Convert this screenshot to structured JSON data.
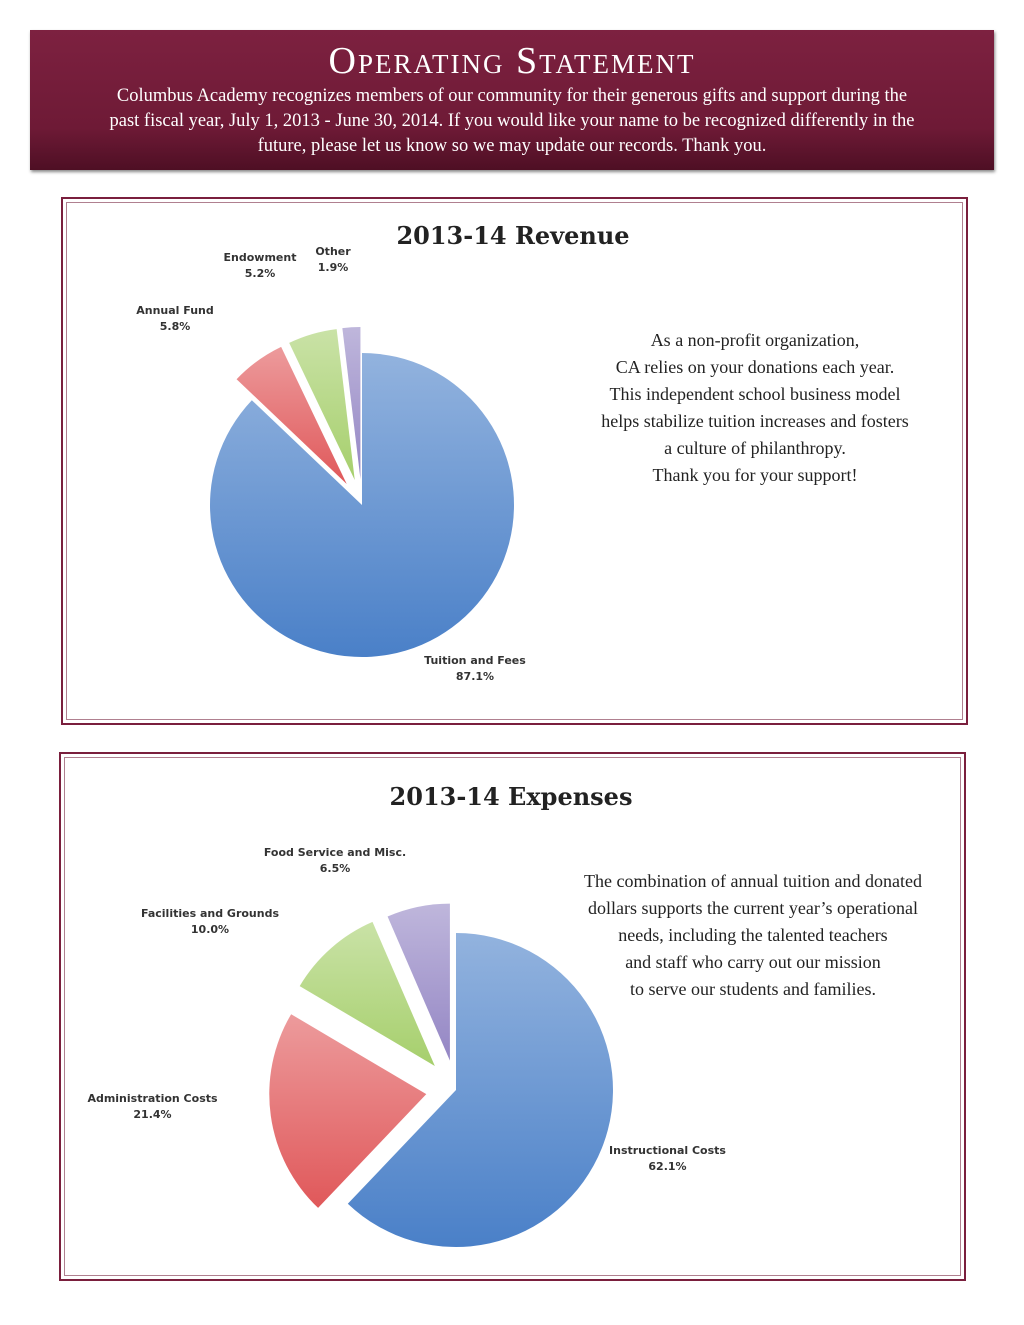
{
  "header": {
    "title": "Operating Statement",
    "intro": "Columbus Academy recognizes members of our community for their generous gifts and support during the past fiscal year, July 1, 2013 - June 30, 2014.  If you would like your name to be recognized differently in the future, please let us know so we may update our records.  Thank you."
  },
  "revenue_text": [
    "As a non-profit organization,",
    "CA relies on your donations each year.",
    "This independent school business model",
    "helps stabilize tuition increases and fosters",
    "a culture of philanthropy.",
    "Thank you for your support!"
  ],
  "expenses_text": [
    "The combination of annual tuition and donated",
    "dollars supports the current year’s operational",
    "needs, including the talented teachers",
    "and staff who carry out our mission",
    "to serve our students and families."
  ],
  "chart_data": [
    {
      "type": "pie",
      "title": "2013-14 Revenue",
      "slices": [
        {
          "label": "Tuition and Fees",
          "pct_label": "87.1%",
          "value": 87.1,
          "color": "#4a80c8"
        },
        {
          "label": "Annual Fund",
          "pct_label": "5.8%",
          "value": 5.8,
          "color": "#e0585a"
        },
        {
          "label": "Endowment",
          "pct_label": "5.2%",
          "value": 5.2,
          "color": "#a6cf6c"
        },
        {
          "label": "Other",
          "pct_label": "1.9%",
          "value": 1.9,
          "color": "#9486c4"
        }
      ]
    },
    {
      "type": "pie",
      "title": "2013-14 Expenses",
      "slices": [
        {
          "label": "Instructional Costs",
          "pct_label": "62.1%",
          "value": 62.1,
          "color": "#4a80c8"
        },
        {
          "label": "Administration Costs",
          "pct_label": "21.4%",
          "value": 21.4,
          "color": "#e0585a"
        },
        {
          "label": "Facilities and Grounds",
          "pct_label": "10.0%",
          "value": 10.0,
          "color": "#a6cf6c"
        },
        {
          "label": "Food Service and Misc.",
          "pct_label": "6.5%",
          "value": 6.5,
          "color": "#9486c4"
        }
      ]
    }
  ]
}
